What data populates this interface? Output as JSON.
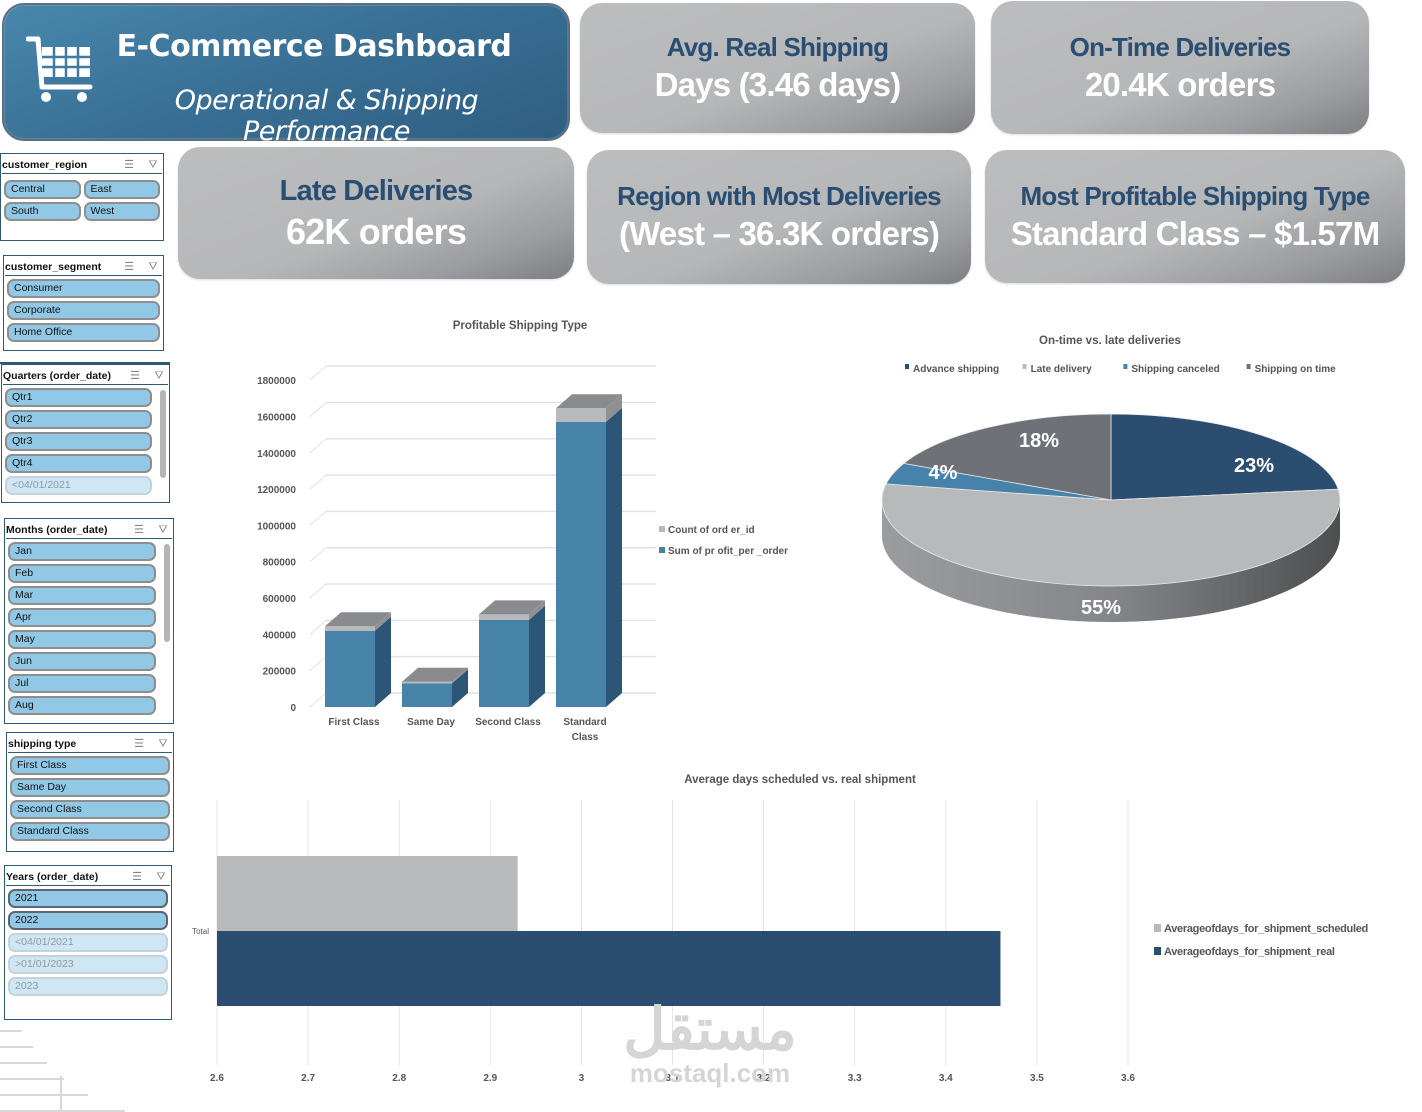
{
  "header": {
    "title": "E-Commerce Dashboard",
    "subtitle": "Operational & Shipping Performance",
    "icon": "shopping-cart-icon"
  },
  "kpis": {
    "avg_shipping": {
      "title": "Avg. Real Shipping",
      "value": "Days (3.46 days)"
    },
    "on_time": {
      "title": "On-Time Deliveries",
      "value": "20.4K orders"
    },
    "late": {
      "title": "Late Deliveries",
      "value": "62K orders"
    },
    "region": {
      "title": "Region with Most Deliveries",
      "value": "(West – 36.3K orders)"
    },
    "profitable": {
      "title": "Most Profitable Shipping Type",
      "value": "Standard Class – $1.57M"
    }
  },
  "slicers": {
    "icons": {
      "multi_select": "multi-select-icon",
      "clear_filter": "clear-filter-icon"
    },
    "customer_region": {
      "title": "customer_region",
      "items": [
        "Central",
        "East",
        "South",
        "West"
      ]
    },
    "customer_segment": {
      "title": "customer_segment",
      "items": [
        "Consumer",
        "Corporate",
        "Home Office"
      ]
    },
    "quarters": {
      "title": "Quarters (order_date)",
      "items": [
        "Qtr1",
        "Qtr2",
        "Qtr3",
        "Qtr4"
      ],
      "dim_items": [
        "<04/01/2021"
      ]
    },
    "months": {
      "title": "Months (order_date)",
      "items": [
        "Jan",
        "Feb",
        "Mar",
        "Apr",
        "May",
        "Jun",
        "Jul",
        "Aug"
      ]
    },
    "shipping_type": {
      "title": "shipping type",
      "items": [
        "First Class",
        "Same Day",
        "Second Class",
        "Standard Class"
      ]
    },
    "years": {
      "title": "Years (order_date)",
      "items": [
        "2021",
        "2022"
      ],
      "dim_items": [
        "<04/01/2021",
        ">01/01/2023",
        "2023"
      ]
    }
  },
  "watermark": {
    "arabic": "مستقل",
    "latin": "mostaql.com"
  },
  "chart_data": [
    {
      "id": "profitable_shipping",
      "type": "bar",
      "stacked": true,
      "style": "3d-column",
      "title": "Profitable Shipping Type",
      "categories": [
        "First Class",
        "Same Day",
        "Second Class",
        "Standard Class"
      ],
      "category_lines": [
        [
          "First Class"
        ],
        [
          "Same Day"
        ],
        [
          "Second Class"
        ],
        [
          "Standard",
          "Class"
        ]
      ],
      "series": [
        {
          "name": "Sum of pr ofit_per _order",
          "color": "#4782a9",
          "side_color": "#2d5575",
          "values": [
            420000,
            130000,
            480000,
            1570000
          ]
        },
        {
          "name": "Count of ord er_id",
          "color": "#b8b9bb",
          "side_color": "#8f9093",
          "values": [
            25000,
            9000,
            30000,
            75000
          ]
        }
      ],
      "legend_order": [
        "Count of ord er_id",
        "Sum of pr ofit_per _order"
      ],
      "yticks": [
        0,
        200000,
        400000,
        600000,
        800000,
        1000000,
        1200000,
        1400000,
        1600000,
        1800000
      ],
      "ylim": [
        0,
        1900000
      ],
      "xlabel": "",
      "ylabel": "",
      "grid": true,
      "legend": "right"
    },
    {
      "id": "on_time_vs_late",
      "type": "pie",
      "style": "3d",
      "title": "On-time vs. late deliveries",
      "slices": [
        {
          "name": "Advance shipping",
          "value": 23,
          "label": "23%",
          "color": "#2b4d70"
        },
        {
          "name": "Late delivery",
          "value": 55,
          "label": "55%",
          "color": "#b8b9bb"
        },
        {
          "name": "Shipping canceled",
          "value": 4,
          "label": "4%",
          "color": "#4682a9"
        },
        {
          "name": "Shipping on time",
          "value": 18,
          "label": "18%",
          "color": "#6e7177"
        }
      ],
      "legend": "top"
    },
    {
      "id": "avg_days",
      "type": "bar",
      "orientation": "horizontal",
      "title": "Average days scheduled vs. real shipment",
      "categories": [
        "Total"
      ],
      "series": [
        {
          "name": "Averageofdays_for_shipment_scheduled",
          "color": "#b8b9bb",
          "values": [
            2.93
          ]
        },
        {
          "name": "Averageofdays_for_shipment_real",
          "color": "#2b4d70",
          "values": [
            3.46
          ]
        }
      ],
      "xticks": [
        2.6,
        2.7,
        2.8,
        2.9,
        3,
        3.1,
        3.2,
        3.3,
        3.4,
        3.5,
        3.6
      ],
      "xlim": [
        2.6,
        3.6
      ],
      "grid": true,
      "legend": "right"
    }
  ]
}
